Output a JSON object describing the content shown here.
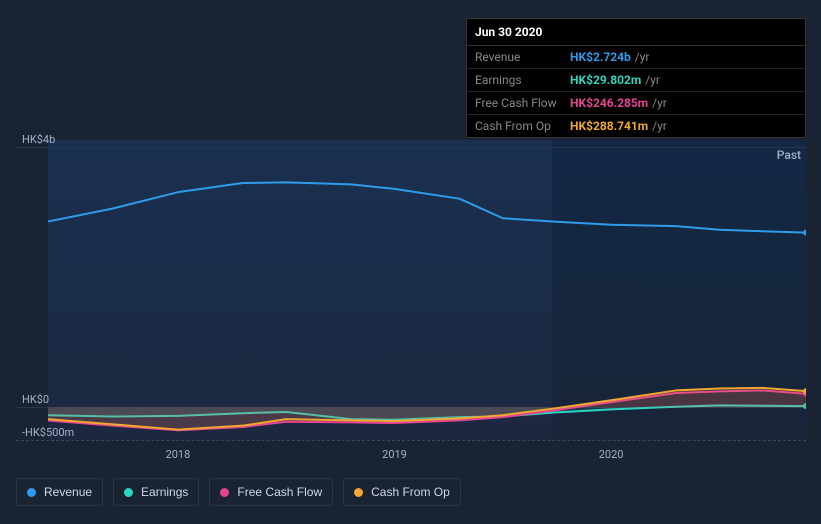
{
  "tooltip": {
    "date": "Jun 30 2020",
    "rows": [
      {
        "label": "Revenue",
        "value": "HK$2.724b",
        "suffix": "/yr",
        "color": "#2f9ceb"
      },
      {
        "label": "Earnings",
        "value": "HK$29.802m",
        "suffix": "/yr",
        "color": "#2dd4bf"
      },
      {
        "label": "Free Cash Flow",
        "value": "HK$246.285m",
        "suffix": "/yr",
        "color": "#e84393"
      },
      {
        "label": "Cash From Op",
        "value": "HK$288.741m",
        "suffix": "/yr",
        "color": "#f0a830"
      }
    ]
  },
  "chart": {
    "type": "area",
    "past_label": "Past",
    "y_axis": {
      "ticks": [
        {
          "label": "HK$4b",
          "value": 4000
        },
        {
          "label": "HK$0",
          "value": 0
        },
        {
          "label": "-HK$500m",
          "value": -500
        }
      ],
      "min": -500,
      "max": 4100
    },
    "x_axis": {
      "start": 2017.4,
      "end": 2020.9,
      "ticks": [
        {
          "label": "2018",
          "value": 2018
        },
        {
          "label": "2019",
          "value": 2019
        },
        {
          "label": "2020",
          "value": 2020
        }
      ]
    },
    "past_boundary": 2019.73,
    "series": [
      {
        "name": "Revenue",
        "color": "#2f9ceb",
        "fill_opacity": 0.0,
        "points": [
          [
            2017.4,
            2850
          ],
          [
            2017.7,
            3050
          ],
          [
            2018.0,
            3300
          ],
          [
            2018.3,
            3440
          ],
          [
            2018.5,
            3450
          ],
          [
            2018.8,
            3420
          ],
          [
            2019.0,
            3350
          ],
          [
            2019.3,
            3200
          ],
          [
            2019.5,
            2900
          ],
          [
            2019.73,
            2850
          ],
          [
            2020.0,
            2800
          ],
          [
            2020.3,
            2780
          ],
          [
            2020.5,
            2724
          ],
          [
            2020.7,
            2700
          ],
          [
            2020.9,
            2680
          ]
        ]
      },
      {
        "name": "Earnings",
        "color": "#2dd4bf",
        "fill_opacity": 0.12,
        "points": [
          [
            2017.4,
            -120
          ],
          [
            2017.7,
            -140
          ],
          [
            2018.0,
            -130
          ],
          [
            2018.3,
            -90
          ],
          [
            2018.5,
            -70
          ],
          [
            2018.8,
            -180
          ],
          [
            2019.0,
            -190
          ],
          [
            2019.3,
            -150
          ],
          [
            2019.5,
            -140
          ],
          [
            2019.73,
            -80
          ],
          [
            2020.0,
            -30
          ],
          [
            2020.3,
            10
          ],
          [
            2020.5,
            30
          ],
          [
            2020.7,
            25
          ],
          [
            2020.9,
            20
          ]
        ]
      },
      {
        "name": "Free Cash Flow",
        "color": "#e84393",
        "fill_opacity": 0.12,
        "points": [
          [
            2017.4,
            -200
          ],
          [
            2017.7,
            -280
          ],
          [
            2018.0,
            -350
          ],
          [
            2018.3,
            -300
          ],
          [
            2018.5,
            -220
          ],
          [
            2018.8,
            -230
          ],
          [
            2019.0,
            -240
          ],
          [
            2019.3,
            -200
          ],
          [
            2019.5,
            -150
          ],
          [
            2019.73,
            -50
          ],
          [
            2020.0,
            80
          ],
          [
            2020.3,
            220
          ],
          [
            2020.5,
            246
          ],
          [
            2020.7,
            260
          ],
          [
            2020.9,
            210
          ]
        ]
      },
      {
        "name": "Cash From Op",
        "color": "#f0a830",
        "fill_opacity": 0.12,
        "points": [
          [
            2017.4,
            -180
          ],
          [
            2017.7,
            -260
          ],
          [
            2018.0,
            -340
          ],
          [
            2018.3,
            -280
          ],
          [
            2018.5,
            -180
          ],
          [
            2018.8,
            -200
          ],
          [
            2019.0,
            -210
          ],
          [
            2019.3,
            -170
          ],
          [
            2019.5,
            -120
          ],
          [
            2019.73,
            -20
          ],
          [
            2020.0,
            110
          ],
          [
            2020.3,
            260
          ],
          [
            2020.5,
            289
          ],
          [
            2020.7,
            300
          ],
          [
            2020.9,
            250
          ]
        ]
      }
    ],
    "legend": [
      {
        "label": "Revenue",
        "color": "#2f9ceb"
      },
      {
        "label": "Earnings",
        "color": "#2dd4bf"
      },
      {
        "label": "Free Cash Flow",
        "color": "#e84393"
      },
      {
        "label": "Cash From Op",
        "color": "#f0a830"
      }
    ],
    "background_left": "#1a3050",
    "background_right": "#122845",
    "grid_color": "#2a3548"
  }
}
